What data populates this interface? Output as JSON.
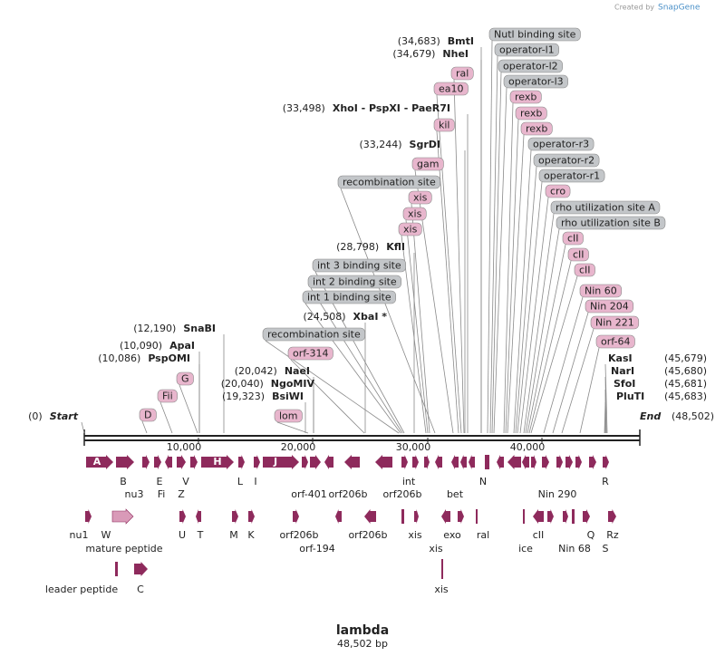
{
  "header": {
    "credit": "Created by",
    "brand": "SnapGene"
  },
  "map": {
    "title": "lambda",
    "length": "48,502 bp",
    "ruler": [
      "10,000",
      "20,000",
      "30,000",
      "40,000"
    ]
  },
  "enzymes": [
    {
      "position": "(34,683)",
      "name": "BmtI"
    },
    {
      "position": "(34,679)",
      "name": "NheI"
    },
    {
      "position": "(33,498)",
      "name": "XhoI  - PspXI  - PaeR7I"
    },
    {
      "position": "(33,244)",
      "name": "SgrDI"
    },
    {
      "position": "(28,798)",
      "name": "KflI"
    },
    {
      "position": "(24,508)",
      "name": "XbaI *"
    },
    {
      "position": "(12,190)",
      "name": "SnaBI"
    },
    {
      "position": "(10,090)",
      "name": "ApaI"
    },
    {
      "position": "(10,086)",
      "name": "PspOMI"
    },
    {
      "position": "(20,042)",
      "name": "NaeI"
    },
    {
      "position": "(20,040)",
      "name": "NgoMIV"
    },
    {
      "position": "(19,323)",
      "name": "BsiWI"
    }
  ],
  "right_enzymes": [
    {
      "name": "KasI",
      "position": "(45,679)"
    },
    {
      "name": "NarI",
      "position": "(45,680)"
    },
    {
      "name": "SfoI",
      "position": "(45,681)"
    },
    {
      "name": "PluTI",
      "position": "(45,683)"
    }
  ],
  "start": {
    "position": "(0)",
    "name": "Start"
  },
  "end": {
    "name": "End",
    "position": "(48,502)"
  },
  "labels": [
    {
      "text": "Nutl binding site",
      "color": "#c3c6c9"
    },
    {
      "text": "operator-l1",
      "color": "#c3c6c9"
    },
    {
      "text": "operator-l2",
      "color": "#c3c6c9"
    },
    {
      "text": "operator-l3",
      "color": "#c3c6c9"
    },
    {
      "text": "rexb",
      "color": "#e8b6cd"
    },
    {
      "text": "rexb",
      "color": "#e8b6cd"
    },
    {
      "text": "rexb",
      "color": "#e8b6cd"
    },
    {
      "text": "operator-r3",
      "color": "#c3c6c9"
    },
    {
      "text": "operator-r2",
      "color": "#c3c6c9"
    },
    {
      "text": "operator-r1",
      "color": "#c3c6c9"
    },
    {
      "text": "cro",
      "color": "#e8b6cd"
    },
    {
      "text": "rho utilization site A",
      "color": "#c3c6c9"
    },
    {
      "text": "rho utilization site B",
      "color": "#c3c6c9"
    },
    {
      "text": "cII",
      "color": "#e8b6cd"
    },
    {
      "text": "cII",
      "color": "#e8b6cd"
    },
    {
      "text": "cII",
      "color": "#e8b6cd"
    },
    {
      "text": "Nin 60",
      "color": "#e8b6cd"
    },
    {
      "text": "Nin 204",
      "color": "#e8b6cd"
    },
    {
      "text": "Nin 221",
      "color": "#e8b6cd"
    },
    {
      "text": "orf-64",
      "color": "#e8b6cd"
    },
    {
      "text": "ral",
      "color": "#e8b6cd"
    },
    {
      "text": "ea10",
      "color": "#e8b6cd"
    },
    {
      "text": "kil",
      "color": "#e8b6cd"
    },
    {
      "text": "gam",
      "color": "#e8b6cd"
    },
    {
      "text": "recombination site",
      "color": "#c3c6c9"
    },
    {
      "text": "xis",
      "color": "#e8b6cd"
    },
    {
      "text": "xis",
      "color": "#e8b6cd"
    },
    {
      "text": "xis",
      "color": "#e8b6cd"
    },
    {
      "text": "int 3 binding site",
      "color": "#c3c6c9"
    },
    {
      "text": "int 2 binding site",
      "color": "#c3c6c9"
    },
    {
      "text": "int 1 binding site",
      "color": "#c3c6c9"
    },
    {
      "text": "recombination site",
      "color": "#c3c6c9"
    },
    {
      "text": "orf-314",
      "color": "#e8b6cd"
    },
    {
      "text": "G",
      "color": "#e8b6cd"
    },
    {
      "text": "Fii",
      "color": "#e8b6cd"
    },
    {
      "text": "D",
      "color": "#e8b6cd"
    },
    {
      "text": "lom",
      "color": "#e8b6cd"
    }
  ],
  "features": [
    "A",
    "H",
    "J",
    "B",
    "nu3",
    "E",
    "Fi",
    "V",
    "Z",
    "L",
    "I",
    "orf-401",
    "orf206b",
    "int",
    "orf206b",
    "bet",
    "N",
    "Nin 290",
    "R",
    "nu1",
    "W",
    "mature peptide",
    "U",
    "T",
    "M",
    "K",
    "orf206b",
    "orf-194",
    "orf206b",
    "xis",
    "xis",
    "exo",
    "ral",
    "ice",
    "cII",
    "Nin 68",
    "Q",
    "S",
    "Rz",
    "leader peptide",
    "C",
    "xis"
  ]
}
